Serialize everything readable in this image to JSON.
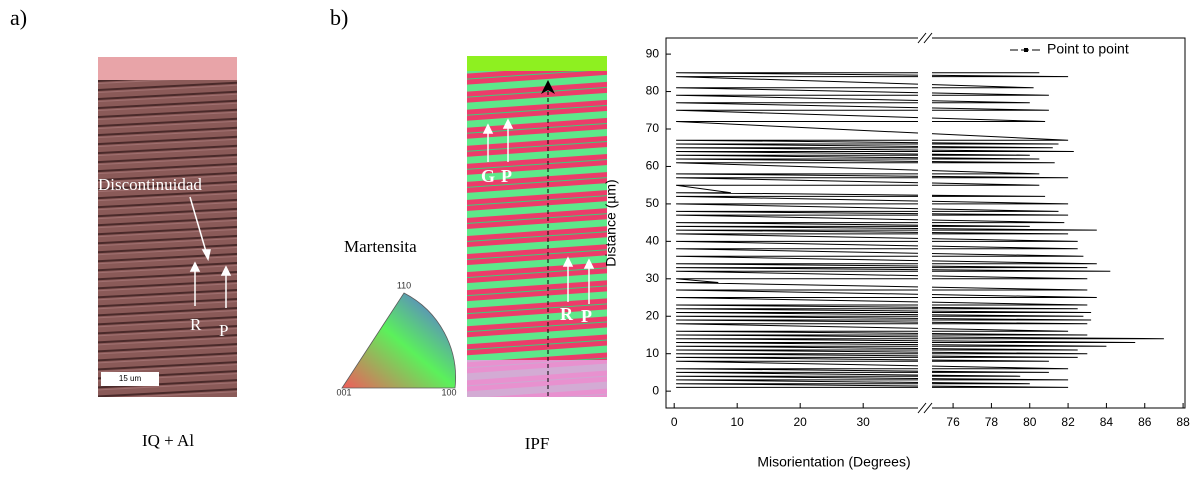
{
  "panels": {
    "a": {
      "label": "a)",
      "caption": "IQ + Al",
      "annotations": [
        "Discontinuidad",
        "R",
        "P"
      ],
      "scale_bar": "15 um"
    },
    "b": {
      "label": "b)",
      "caption": "IPF",
      "legend_title": "Martensita",
      "triangle_labels": [
        "110",
        "001",
        "100"
      ],
      "annotations": [
        "G",
        "P",
        "R",
        "P"
      ]
    }
  },
  "chart_data": {
    "type": "line",
    "xlabel": "Misorientation (Degrees)",
    "ylabel": "Distance (µm)",
    "xlim": [
      -1.3,
      88.1
    ],
    "xbreak": [
      38.7,
      74.9
    ],
    "xticks": [
      0,
      10,
      20,
      30,
      76,
      78,
      80,
      82,
      84,
      86,
      88
    ],
    "ylim": [
      -4.5,
      94.3
    ],
    "yticks": [
      0,
      10,
      20,
      30,
      40,
      50,
      60,
      70,
      80,
      90
    ],
    "legend": "upper right",
    "series": [
      {
        "name": "Point to point",
        "color": "#000000",
        "x": [
          0.3,
          82,
          0.3,
          80,
          0.3,
          82,
          0.3,
          79.5,
          0.3,
          81,
          0.3,
          82,
          0.3,
          81,
          0.3,
          82.5,
          0.3,
          83,
          0.3,
          82.5,
          0.3,
          84,
          0.3,
          85.5,
          0.3,
          87,
          0.3,
          83,
          0.3,
          82,
          0.3,
          83,
          0.3,
          83.2,
          0.3,
          82.8,
          0.3,
          83.2,
          0.3,
          82.5,
          0.3,
          83,
          0.3,
          83.5,
          0.3,
          83,
          0.3,
          7,
          0.3,
          83,
          0.3,
          84.2,
          0.3,
          83,
          0.3,
          83.5,
          0.3,
          82.8,
          0.3,
          82.5,
          0.3,
          82.5,
          0.3,
          82,
          0.3,
          83.5,
          0.3,
          80,
          0.3,
          81.8,
          0.3,
          82,
          0.3,
          81.5,
          0.3,
          82,
          0.3,
          80.8,
          0.3,
          9,
          0.3,
          80.5,
          0.3,
          82,
          0.3,
          80.5,
          0.3,
          81.3,
          0.3,
          80.5,
          0.3,
          80,
          0.3,
          82.3,
          0.3,
          81.2,
          0.3,
          81.5,
          0.3,
          82,
          0.3,
          80.8,
          0.3,
          81,
          0.3,
          80,
          0.3,
          81,
          0.3,
          80.2,
          0.3,
          82,
          0.3,
          80.5
        ],
        "values": [
          1,
          1,
          2,
          2,
          3,
          3,
          4,
          4,
          5,
          5,
          6,
          6,
          8,
          8,
          9,
          9,
          10,
          10,
          11,
          11,
          12,
          12,
          13,
          13,
          14,
          14,
          15,
          15,
          16,
          16,
          18,
          18,
          19,
          19,
          20,
          20,
          21,
          21,
          22,
          22,
          23,
          23,
          25,
          25,
          27,
          27,
          29,
          29,
          30,
          30,
          32,
          32,
          33,
          33,
          34,
          34,
          36,
          36,
          38,
          38,
          40,
          40,
          42,
          42,
          43,
          43,
          44,
          44,
          45,
          45,
          47,
          47,
          48,
          48,
          50,
          50,
          52,
          52,
          53,
          53,
          55,
          55,
          57,
          57,
          58,
          58,
          61,
          61,
          62,
          62,
          63,
          63,
          64,
          64,
          65,
          65,
          66,
          66,
          67,
          67,
          72,
          72,
          75,
          75,
          77,
          77,
          79,
          79,
          81,
          81,
          84,
          84,
          85,
          85
        ]
      }
    ]
  }
}
